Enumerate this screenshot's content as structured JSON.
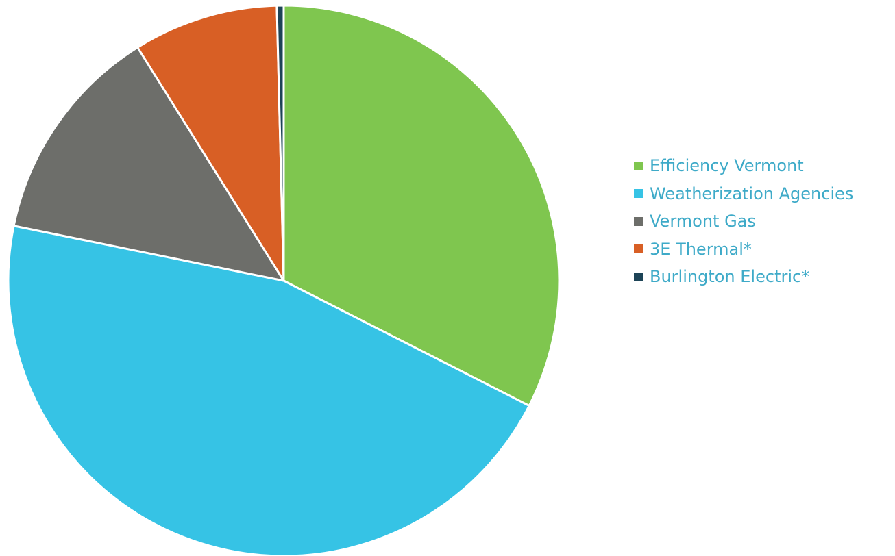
{
  "chart_data": {
    "type": "pie",
    "legend_position": "right",
    "slices": [
      {
        "label": "Efficiency Vermont",
        "value": 32.5,
        "color": "#7fc64f"
      },
      {
        "label": "Weatherization Agencies",
        "value": 45.7,
        "color": "#36c3e5"
      },
      {
        "label": "Vermont Gas",
        "value": 12.9,
        "color": "#6d6e6a"
      },
      {
        "label": "3E Thermal*",
        "value": 8.5,
        "color": "#d85f25"
      },
      {
        "label": "Burlington Electric*",
        "value": 0.4,
        "color": "#1d4457"
      }
    ]
  }
}
